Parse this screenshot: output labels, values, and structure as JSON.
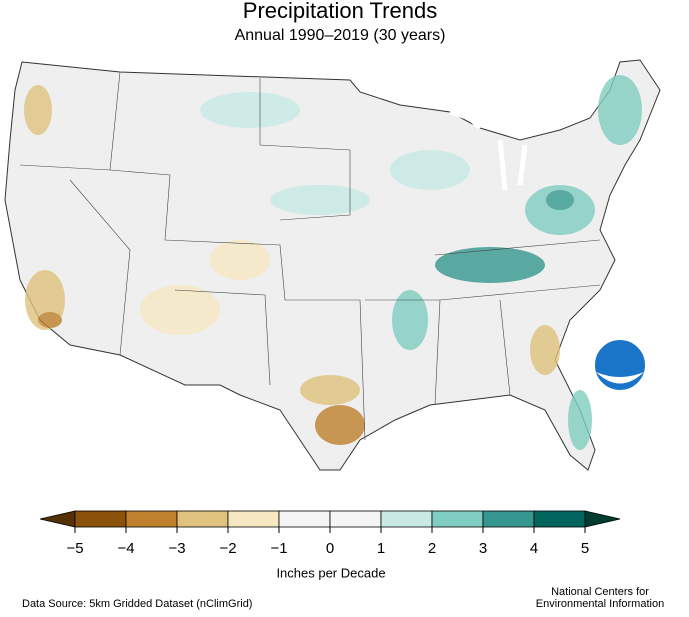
{
  "header": {
    "title": "Precipitation Trends",
    "subtitle": "Annual 1990–2019 (30 years)"
  },
  "legend": {
    "label": "Inches per Decade",
    "ticks": [
      {
        "value": -5,
        "label": "−5"
      },
      {
        "value": -4,
        "label": "−4"
      },
      {
        "value": -3,
        "label": "−3"
      },
      {
        "value": -2,
        "label": "−2"
      },
      {
        "value": -1,
        "label": "−1"
      },
      0,
      1,
      2,
      3,
      4,
      5
    ],
    "colors": [
      "#8c510a",
      "#bf812d",
      "#dfc27d",
      "#f6e8c3",
      "#f5f5f5",
      "#f5f5f5",
      "#c7eae5",
      "#80cdc1",
      "#35978f",
      "#01665e"
    ],
    "low_color": "#543005",
    "high_color": "#003c30"
  },
  "footer": {
    "source": "Data Source: 5km Gridded Dataset (nClimGrid)",
    "credit_line1": "National Centers for",
    "credit_line2": "Environmental Information"
  }
}
